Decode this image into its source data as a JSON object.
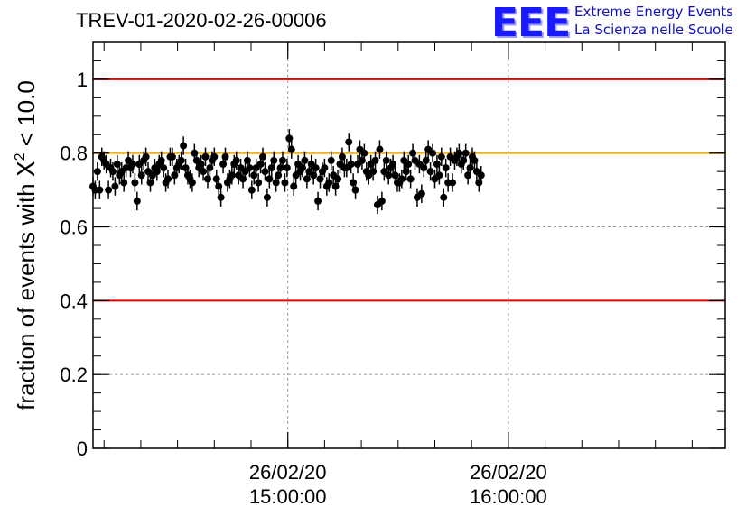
{
  "title": "TREV-01-2020-02-26-00006",
  "logo": {
    "mark": "EEE",
    "line1": "Extreme Energy Events",
    "line2": "La Scienza nelle Scuole"
  },
  "colors": {
    "reference_lines": "#e00000",
    "target_line": "#ffb000",
    "markers": "#000000",
    "logo": "#1a1aff"
  },
  "chart_data": {
    "type": "scatter",
    "title": "TREV-01-2020-02-26-00006",
    "xlabel": "",
    "ylabel": "fraction of events with χ² < 10.0",
    "ylabel_parts": {
      "pre": "fraction of events with ",
      "sym": "X",
      "sup": "2",
      "post": " < 10.0"
    },
    "ylim": [
      0,
      1.1
    ],
    "yticks": [
      "0",
      "0.2",
      "0.4",
      "0.6",
      "0.8",
      "1"
    ],
    "xlim": [
      "2020-02-26 14:07:00",
      "2020-02-26 16:59:00"
    ],
    "xticks": [
      {
        "x": "2020-02-26 15:00:00",
        "date": "26/02/20",
        "time": "15:00:00"
      },
      {
        "x": "2020-02-26 16:00:00",
        "date": "26/02/20",
        "time": "16:00:00"
      }
    ],
    "grid": true,
    "hlines": [
      {
        "y": 1.0,
        "color": "#e00000"
      },
      {
        "y": 0.8,
        "color": "#ffb000"
      },
      {
        "y": 0.4,
        "color": "#e00000"
      }
    ],
    "x_start": "2020-02-26 14:07:00",
    "x_step_seconds": 36,
    "y_error": 0.025,
    "y": [
      0.71,
      0.7,
      0.75,
      0.7,
      0.79,
      0.78,
      0.77,
      0.7,
      0.76,
      0.75,
      0.71,
      0.77,
      0.74,
      0.75,
      0.72,
      0.76,
      0.78,
      0.76,
      0.77,
      0.72,
      0.67,
      0.77,
      0.74,
      0.78,
      0.79,
      0.75,
      0.72,
      0.74,
      0.76,
      0.75,
      0.77,
      0.78,
      0.76,
      0.72,
      0.73,
      0.79,
      0.79,
      0.74,
      0.76,
      0.77,
      0.78,
      0.82,
      0.76,
      0.74,
      0.73,
      0.72,
      0.8,
      0.78,
      0.76,
      0.77,
      0.75,
      0.79,
      0.73,
      0.76,
      0.78,
      0.79,
      0.73,
      0.71,
      0.68,
      0.77,
      0.79,
      0.72,
      0.73,
      0.74,
      0.77,
      0.78,
      0.74,
      0.76,
      0.73,
      0.75,
      0.78,
      0.76,
      0.7,
      0.74,
      0.76,
      0.72,
      0.77,
      0.79,
      0.75,
      0.68,
      0.73,
      0.76,
      0.78,
      0.72,
      0.74,
      0.76,
      0.78,
      0.72,
      0.76,
      0.84,
      0.81,
      0.71,
      0.74,
      0.77,
      0.75,
      0.76,
      0.78,
      0.73,
      0.75,
      0.77,
      0.74,
      0.76,
      0.67,
      0.73,
      0.75,
      0.76,
      0.71,
      0.72,
      0.78,
      0.74,
      0.71,
      0.73,
      0.77,
      0.79,
      0.76,
      0.76,
      0.83,
      0.77,
      0.72,
      0.7,
      0.77,
      0.81,
      0.78,
      0.8,
      0.75,
      0.74,
      0.77,
      0.75,
      0.78,
      0.66,
      0.81,
      0.67,
      0.75,
      0.78,
      0.74,
      0.76,
      0.77,
      0.74,
      0.72,
      0.72,
      0.73,
      0.78,
      0.75,
      0.77,
      0.73,
      0.8,
      0.78,
      0.68,
      0.77,
      0.69,
      0.76,
      0.78,
      0.81,
      0.75,
      0.8,
      0.73,
      0.77,
      0.74,
      0.79,
      0.68,
      0.76,
      0.72,
      0.79,
      0.72,
      0.78,
      0.79,
      0.8,
      0.77,
      0.78,
      0.8,
      0.74,
      0.76,
      0.79,
      0.78,
      0.75,
      0.72,
      0.74
    ]
  }
}
